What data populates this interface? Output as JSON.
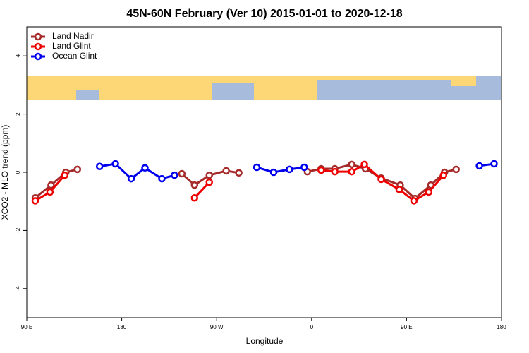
{
  "chart_data": {
    "type": "line",
    "title": "45N-60N February (Ver 10)   2015-01-01 to 2020-12-18",
    "x_label": "Longitude",
    "y_label": "XCO2 - MLO trend (ppm)",
    "xlim": [
      90,
      540
    ],
    "xticks": [
      {
        "value": 90,
        "label": "90 E"
      },
      {
        "value": 180,
        "label": "180"
      },
      {
        "value": 270,
        "label": "90 W"
      },
      {
        "value": 360,
        "label": "0"
      },
      {
        "value": 450,
        "label": "90 E"
      },
      {
        "value": 540,
        "label": "180"
      }
    ],
    "ylim": [
      -5,
      5
    ],
    "yticks": [
      -4,
      -2,
      0,
      2,
      4
    ],
    "legend_position": "top-left",
    "series": [
      {
        "name": "Land Nadir",
        "color": "#a52a2a",
        "x": [
          98,
          113,
          127,
          138,
          null,
          237,
          249,
          263,
          279,
          291,
          null,
          356,
          369,
          382,
          398,
          411,
          426,
          444,
          458,
          473,
          486,
          497
        ],
        "values": [
          -0.88,
          -0.44,
          0,
          0.1,
          null,
          -0.05,
          -0.44,
          -0.1,
          0.05,
          -0.02,
          null,
          0.02,
          0.12,
          0.12,
          0.27,
          0.12,
          -0.2,
          -0.44,
          -0.9,
          -0.44,
          0,
          0.1
        ]
      },
      {
        "name": "Land Glint",
        "color": "#ee0000",
        "x": [
          98,
          112,
          126,
          null,
          249,
          263,
          null,
          369,
          382,
          398,
          410,
          426,
          443,
          457,
          471,
          485
        ],
        "values": [
          -0.98,
          -0.68,
          -0.1,
          null,
          -0.88,
          -0.34,
          null,
          0.07,
          0.02,
          0.02,
          0.27,
          -0.24,
          -0.59,
          -0.98,
          -0.68,
          -0.1
        ]
      },
      {
        "name": "Ocean Glint",
        "color": "#0000ee",
        "x": [
          159,
          174,
          189,
          202,
          218,
          230,
          null,
          308,
          324,
          339,
          353,
          null,
          519,
          533
        ],
        "values": [
          0.2,
          0.29,
          -0.22,
          0.15,
          -0.22,
          -0.1,
          null,
          0.17,
          0,
          0.1,
          0.17,
          null,
          0.22,
          0.29
        ]
      }
    ]
  }
}
